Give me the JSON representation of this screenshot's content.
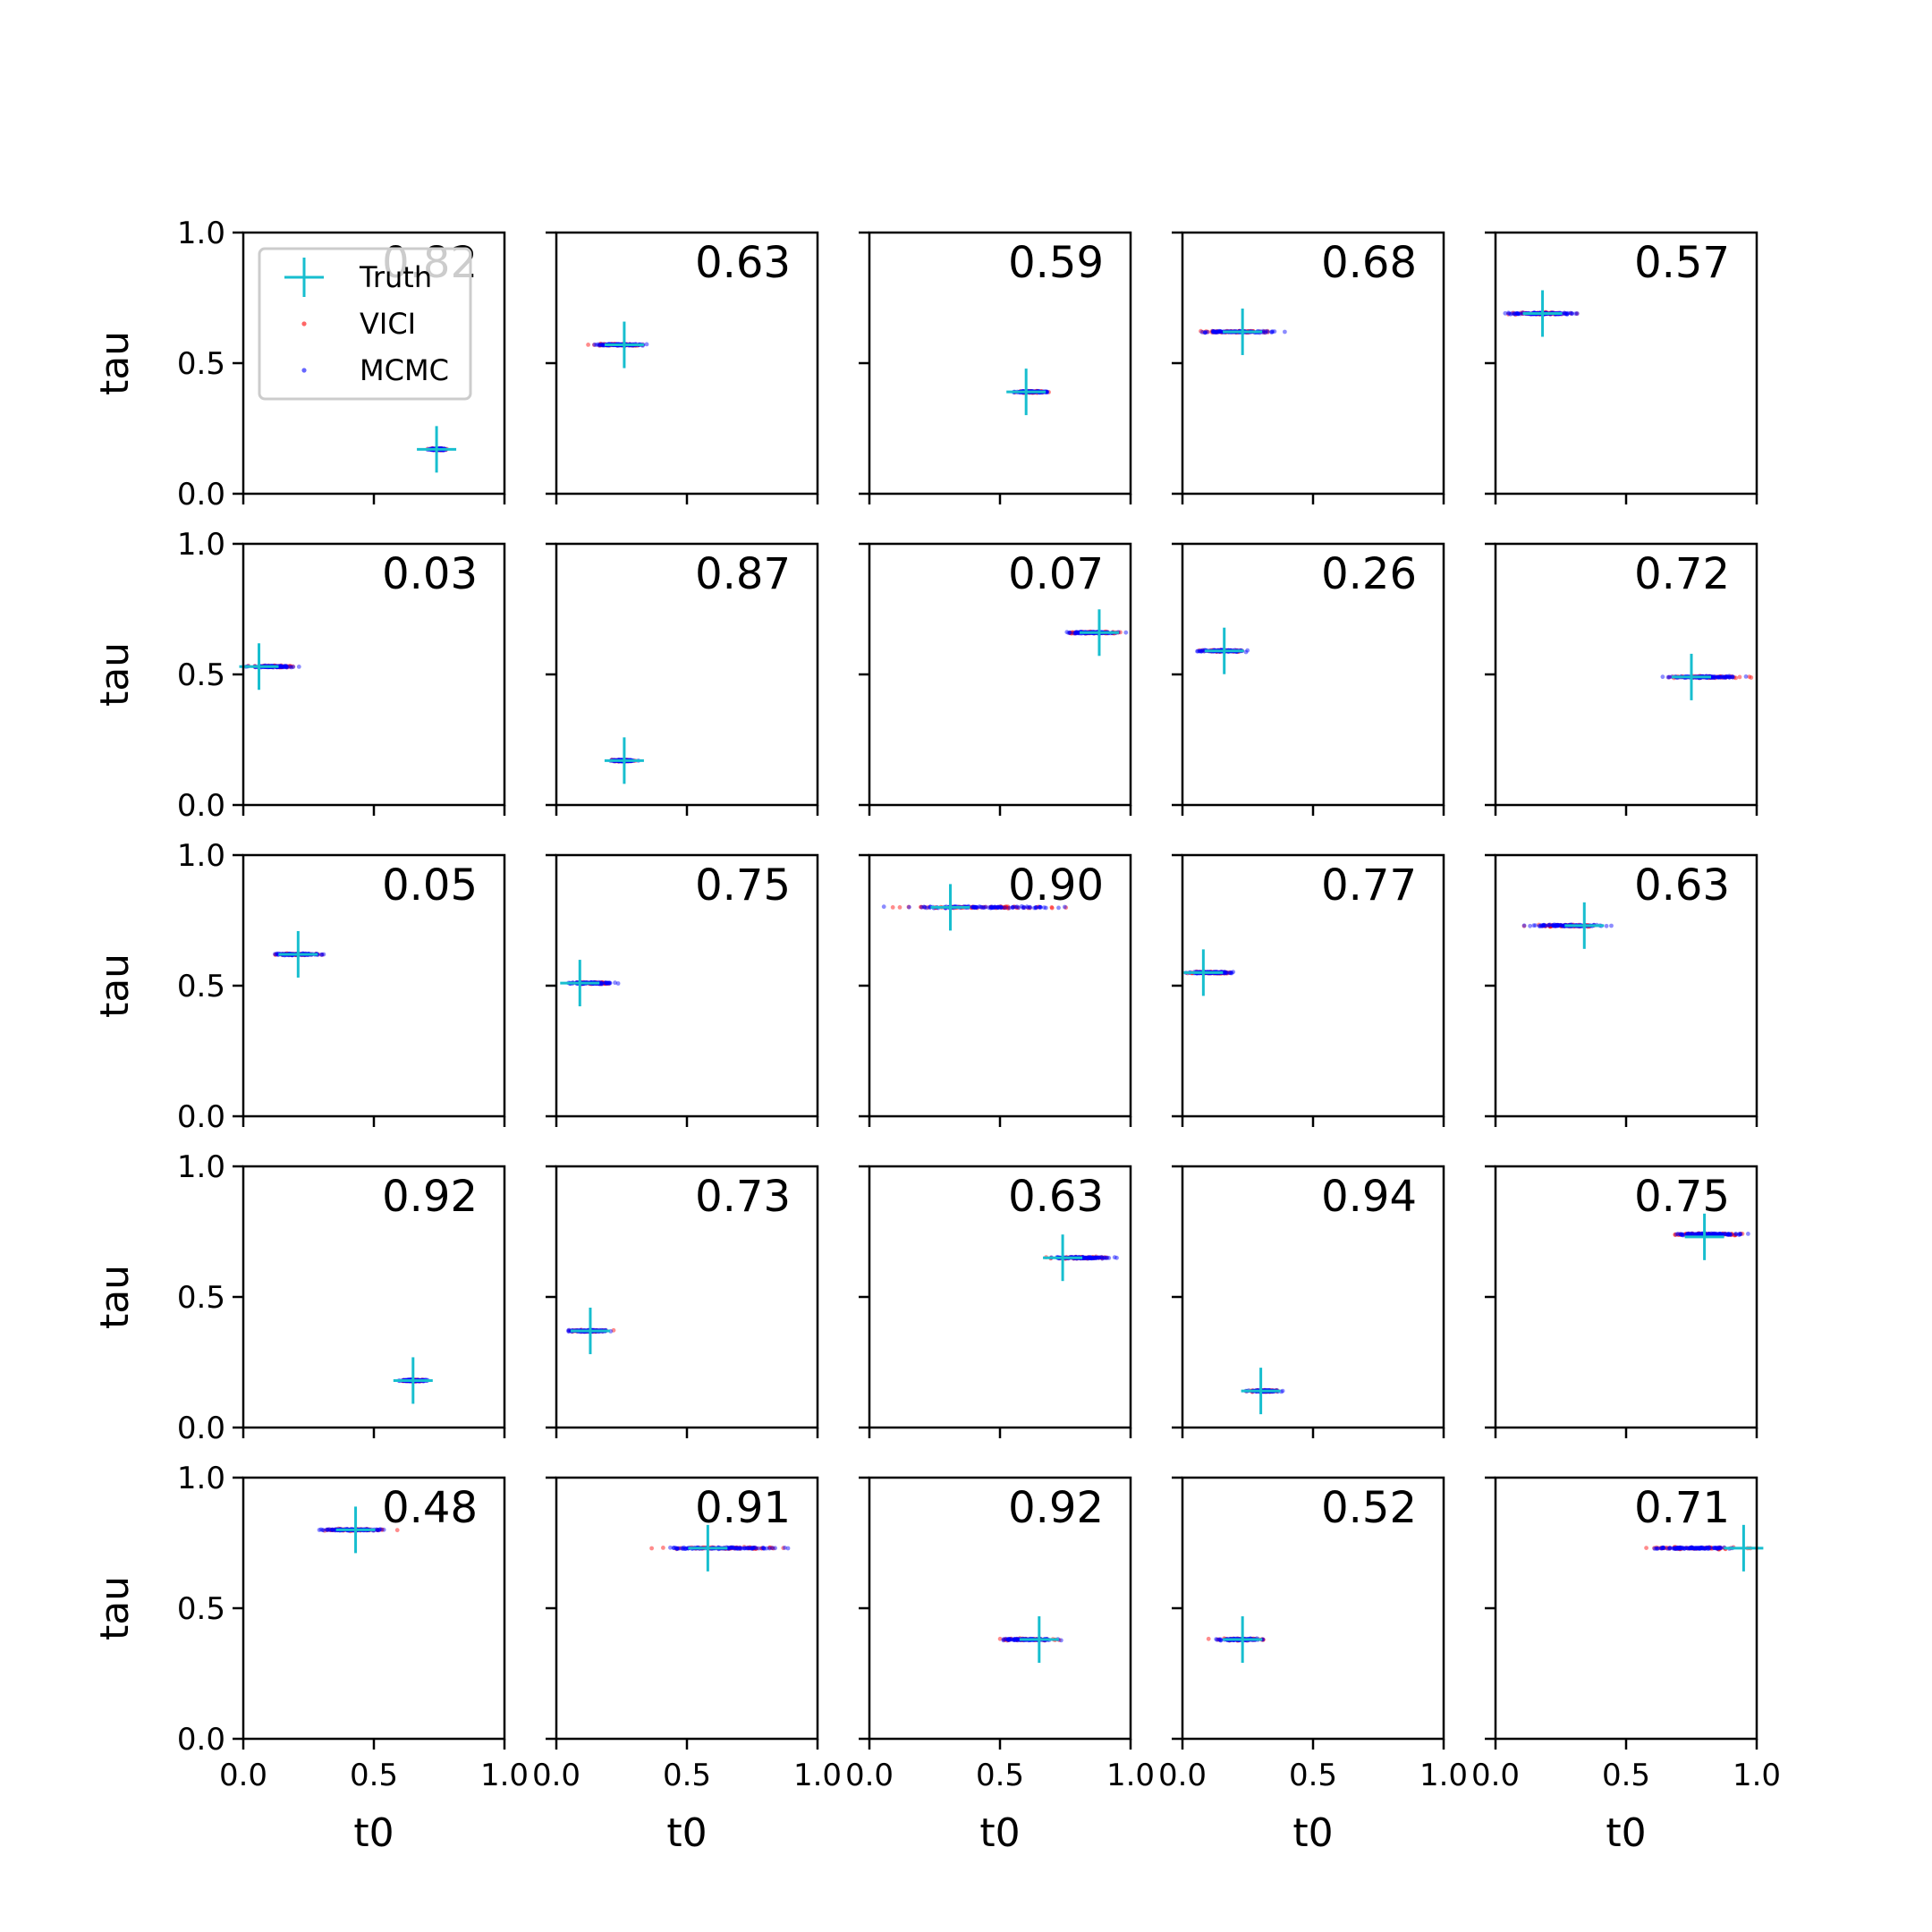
{
  "colors": {
    "truth": "#17becf",
    "vici": "#ff0000",
    "mcmc": "#0000ff",
    "axes": "#000000"
  },
  "legend": {
    "truth": "Truth",
    "vici": "VICI",
    "mcmc": "MCMC",
    "placement": "upper left of first panel"
  },
  "chart_data": {
    "type": "scatter",
    "grid": "5x5 small multiples",
    "xlabel": "t0",
    "ylabel": "tau",
    "xlim": [
      0,
      1
    ],
    "ylim": [
      0,
      1
    ],
    "xticks": [
      "0.0",
      "0.5",
      "1.0"
    ],
    "yticks": [
      "0.0",
      "0.5",
      "1.0"
    ],
    "series_names": [
      "Truth",
      "VICI",
      "MCMC"
    ],
    "panels": [
      {
        "label": "0.82",
        "truth": [
          0.74,
          0.17
        ],
        "spread": {
          "t0": [
            0.7,
            0.79
          ],
          "tau": 0.17
        }
      },
      {
        "label": "0.63",
        "truth": [
          0.26,
          0.57
        ],
        "spread": {
          "t0": [
            0.1,
            0.37
          ],
          "tau": 0.57
        }
      },
      {
        "label": "0.59",
        "truth": [
          0.6,
          0.39
        ],
        "spread": {
          "t0": [
            0.54,
            0.7
          ],
          "tau": 0.39
        }
      },
      {
        "label": "0.68",
        "truth": [
          0.23,
          0.62
        ],
        "spread": {
          "t0": [
            0.0,
            0.42
          ],
          "tau": 0.62
        }
      },
      {
        "label": "0.57",
        "truth": [
          0.18,
          0.69
        ],
        "spread": {
          "t0": [
            0.0,
            0.37
          ],
          "tau": 0.69
        }
      },
      {
        "label": "0.03",
        "truth": [
          0.06,
          0.53
        ],
        "spread": {
          "t0": [
            0.0,
            0.22
          ],
          "tau": 0.53
        }
      },
      {
        "label": "0.87",
        "truth": [
          0.26,
          0.17
        ],
        "spread": {
          "t0": [
            0.19,
            0.32
          ],
          "tau": 0.17
        }
      },
      {
        "label": "0.07",
        "truth": [
          0.88,
          0.66
        ],
        "spread": {
          "t0": [
            0.71,
            1.0
          ],
          "tau": 0.66
        }
      },
      {
        "label": "0.26",
        "truth": [
          0.16,
          0.59
        ],
        "spread": {
          "t0": [
            0.03,
            0.27
          ],
          "tau": 0.59
        }
      },
      {
        "label": "0.72",
        "truth": [
          0.75,
          0.49
        ],
        "spread": {
          "t0": [
            0.62,
            0.98
          ],
          "tau": 0.49
        }
      },
      {
        "label": "0.05",
        "truth": [
          0.21,
          0.62
        ],
        "spread": {
          "t0": [
            0.08,
            0.33
          ],
          "tau": 0.62
        }
      },
      {
        "label": "0.75",
        "truth": [
          0.09,
          0.51
        ],
        "spread": {
          "t0": [
            0.02,
            0.26
          ],
          "tau": 0.51
        }
      },
      {
        "label": "0.90",
        "truth": [
          0.31,
          0.8
        ],
        "spread": {
          "t0": [
            0.0,
            0.84
          ],
          "tau": 0.8
        }
      },
      {
        "label": "0.77",
        "truth": [
          0.08,
          0.55
        ],
        "spread": {
          "t0": [
            0.0,
            0.22
          ],
          "tau": 0.55
        }
      },
      {
        "label": "0.63",
        "truth": [
          0.34,
          0.73
        ],
        "spread": {
          "t0": [
            0.09,
            0.46
          ],
          "tau": 0.73
        }
      },
      {
        "label": "0.92",
        "truth": [
          0.65,
          0.18
        ],
        "spread": {
          "t0": [
            0.58,
            0.72
          ],
          "tau": 0.18
        }
      },
      {
        "label": "0.73",
        "truth": [
          0.13,
          0.37
        ],
        "spread": {
          "t0": [
            0.02,
            0.23
          ],
          "tau": 0.37
        }
      },
      {
        "label": "0.63",
        "truth": [
          0.74,
          0.65
        ],
        "spread": {
          "t0": [
            0.65,
            0.98
          ],
          "tau": 0.65
        }
      },
      {
        "label": "0.94",
        "truth": [
          0.3,
          0.14
        ],
        "spread": {
          "t0": [
            0.23,
            0.4
          ],
          "tau": 0.14
        }
      },
      {
        "label": "0.75",
        "truth": [
          0.8,
          0.73
        ],
        "spread": {
          "t0": [
            0.63,
            1.0
          ],
          "tau": 0.74
        }
      },
      {
        "label": "0.48",
        "truth": [
          0.43,
          0.8
        ],
        "spread": {
          "t0": [
            0.24,
            0.6
          ],
          "tau": 0.8
        }
      },
      {
        "label": "0.91",
        "truth": [
          0.58,
          0.73
        ],
        "spread": {
          "t0": [
            0.31,
            0.98
          ],
          "tau": 0.73
        }
      },
      {
        "label": "0.92",
        "truth": [
          0.65,
          0.38
        ],
        "spread": {
          "t0": [
            0.46,
            0.76
          ],
          "tau": 0.38
        }
      },
      {
        "label": "0.52",
        "truth": [
          0.23,
          0.38
        ],
        "spread": {
          "t0": [
            0.1,
            0.34
          ],
          "tau": 0.38
        }
      },
      {
        "label": "0.71",
        "truth": [
          0.95,
          0.73
        ],
        "spread": {
          "t0": [
            0.52,
            1.0
          ],
          "tau": 0.73
        }
      }
    ]
  }
}
